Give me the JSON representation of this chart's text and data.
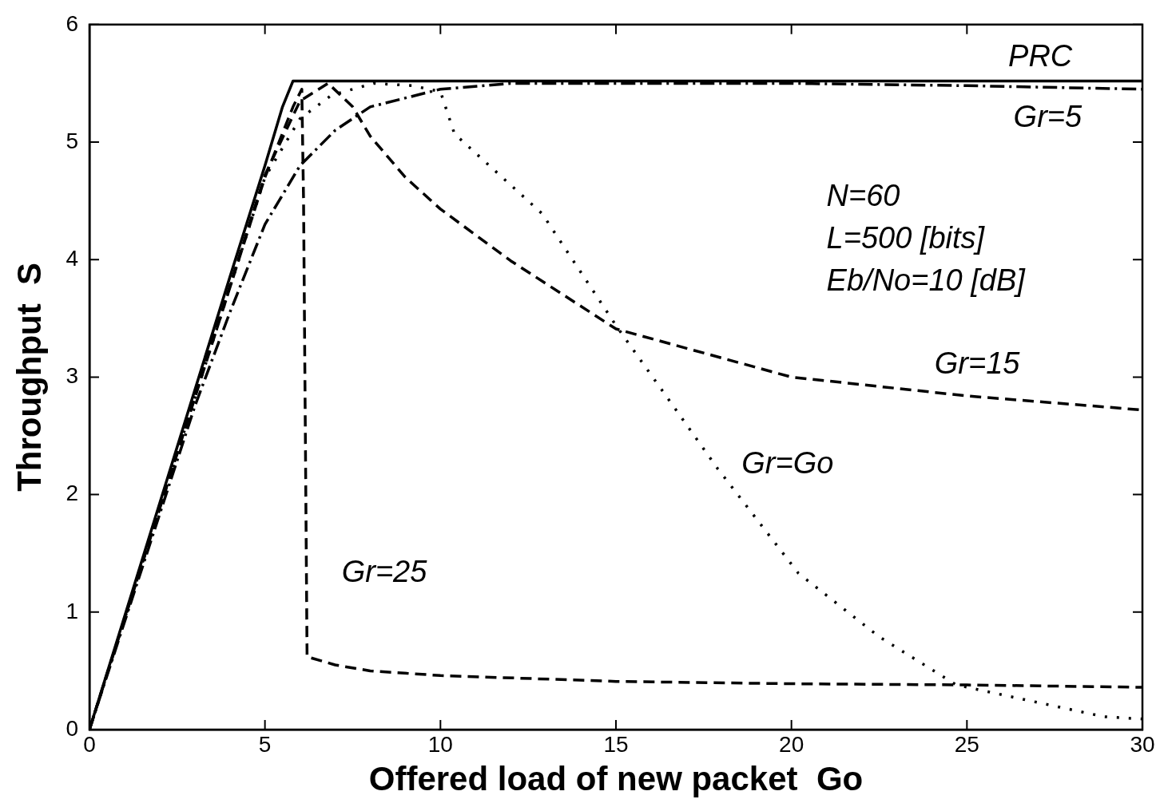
{
  "chart_data": {
    "type": "line",
    "xlabel": "Offered load of new packet  Go",
    "ylabel": "Throughput  S",
    "xlim": [
      0,
      30
    ],
    "ylim": [
      0,
      6
    ],
    "xticks": [
      0,
      5,
      10,
      15,
      20,
      25,
      30
    ],
    "yticks": [
      0,
      1,
      2,
      3,
      4,
      5,
      6
    ],
    "grid": false,
    "legend": false,
    "marker": "none",
    "series": [
      {
        "name": "PRC",
        "color": "#000000",
        "line_style": "solid",
        "x": [
          0,
          4,
          5,
          5.5,
          5.8,
          30
        ],
        "values": [
          0,
          3.85,
          4.8,
          5.3,
          5.52,
          5.52
        ]
      },
      {
        "name": "Gr=25",
        "color": "#000000",
        "line_style": "dashed",
        "x": [
          0,
          5,
          5.8,
          6.05,
          6.1,
          6.2,
          7,
          8,
          10,
          15,
          20,
          25,
          30
        ],
        "values": [
          0,
          4.7,
          5.3,
          5.45,
          4.5,
          0.62,
          0.55,
          0.5,
          0.46,
          0.41,
          0.39,
          0.38,
          0.36
        ]
      },
      {
        "name": "Gr=15",
        "color": "#000000",
        "line_style": "dashed",
        "x": [
          0,
          5,
          6,
          6.8,
          7.5,
          8,
          9,
          10,
          12,
          15,
          20,
          25,
          30
        ],
        "values": [
          0,
          4.72,
          5.35,
          5.5,
          5.3,
          5.05,
          4.7,
          4.43,
          3.99,
          3.41,
          3.0,
          2.84,
          2.72
        ]
      },
      {
        "name": "Gr=Go",
        "color": "#000000",
        "line_style": "dotted",
        "x": [
          0,
          5,
          6,
          6.9,
          8.1,
          9.2,
          10,
          10.4,
          12.9,
          15,
          17.9,
          20.2,
          22.5,
          24.7,
          28.9,
          30
        ],
        "values": [
          0,
          4.7,
          5.2,
          5.4,
          5.5,
          5.48,
          5.43,
          5.07,
          4.39,
          3.44,
          2.22,
          1.33,
          0.79,
          0.38,
          0.11,
          0.09
        ]
      },
      {
        "name": "Gr=5",
        "color": "#000000",
        "line_style": "dashdot",
        "x": [
          0,
          3,
          4,
          5,
          6,
          7,
          8,
          10,
          12,
          20,
          25,
          30
        ],
        "values": [
          0,
          2.75,
          3.55,
          4.3,
          4.8,
          5.1,
          5.3,
          5.45,
          5.5,
          5.5,
          5.48,
          5.45
        ]
      }
    ],
    "annotations": [
      "N=60",
      "L=500 [bits]",
      "Eb/No=10 [dB]"
    ]
  }
}
